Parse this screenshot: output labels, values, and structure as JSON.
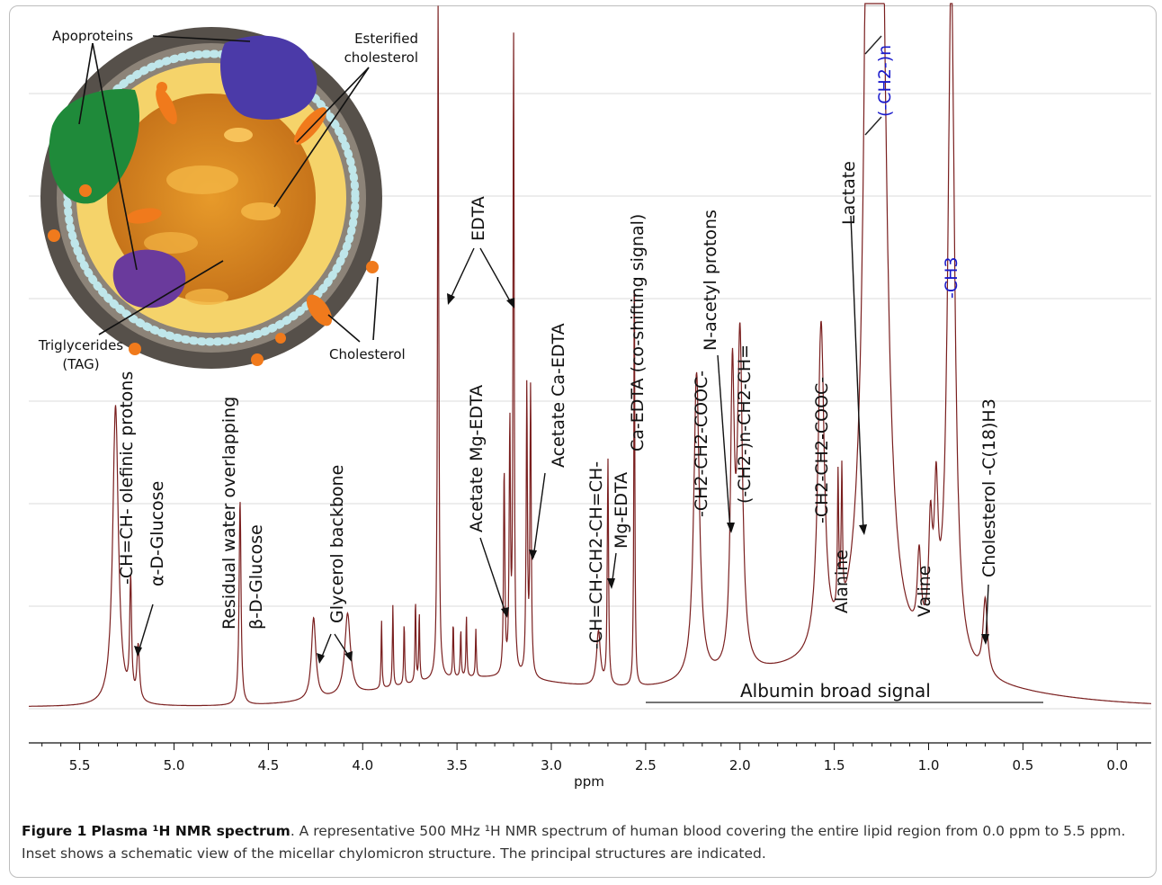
{
  "chart_data": {
    "type": "line",
    "title": "",
    "xlabel": "ppm",
    "ylabel": "",
    "xlim": [
      5.77,
      -0.18
    ],
    "x_reversed": true,
    "ylim": [
      0,
      1
    ],
    "grid": "horizontal",
    "line_color": "#7a1f1f",
    "tick_labels": [
      "5.5",
      "5.0",
      "4.5",
      "4.0",
      "3.5",
      "3.0",
      "2.5",
      "2.0",
      "1.5",
      "1.0",
      "0.5",
      "0.0"
    ],
    "tick_values": [
      5.5,
      5.0,
      4.5,
      4.0,
      3.5,
      3.0,
      2.5,
      2.0,
      1.5,
      1.0,
      0.5,
      0.0
    ],
    "peaks": [
      {
        "ppm": 5.31,
        "h": 0.44,
        "w": 0.018
      },
      {
        "ppm": 5.23,
        "h": 0.17,
        "w": 0.006
      },
      {
        "ppm": 5.19,
        "h": 0.08,
        "w": 0.008
      },
      {
        "ppm": 4.65,
        "h": 0.3,
        "w": 0.006
      },
      {
        "ppm": 4.26,
        "h": 0.12,
        "w": 0.014
      },
      {
        "ppm": 4.08,
        "h": 0.12,
        "w": 0.018
      },
      {
        "ppm": 3.9,
        "h": 0.1,
        "w": 0.003
      },
      {
        "ppm": 3.84,
        "h": 0.12,
        "w": 0.003
      },
      {
        "ppm": 3.78,
        "h": 0.09,
        "w": 0.003
      },
      {
        "ppm": 3.72,
        "h": 0.12,
        "w": 0.003
      },
      {
        "ppm": 3.7,
        "h": 0.1,
        "w": 0.003
      },
      {
        "ppm": 3.6,
        "h": 0.99,
        "w": 0.004
      },
      {
        "ppm": 3.52,
        "h": 0.08,
        "w": 0.003
      },
      {
        "ppm": 3.48,
        "h": 0.07,
        "w": 0.003
      },
      {
        "ppm": 3.45,
        "h": 0.09,
        "w": 0.003
      },
      {
        "ppm": 3.4,
        "h": 0.07,
        "w": 0.003
      },
      {
        "ppm": 3.25,
        "h": 0.3,
        "w": 0.004
      },
      {
        "ppm": 3.22,
        "h": 0.36,
        "w": 0.004
      },
      {
        "ppm": 3.2,
        "h": 0.94,
        "w": 0.0035
      },
      {
        "ppm": 3.13,
        "h": 0.42,
        "w": 0.004
      },
      {
        "ppm": 3.11,
        "h": 0.42,
        "w": 0.004
      },
      {
        "ppm": 2.75,
        "h": 0.08,
        "w": 0.012
      },
      {
        "ppm": 2.7,
        "h": 0.33,
        "w": 0.004
      },
      {
        "ppm": 2.56,
        "h": 0.64,
        "w": 0.003
      },
      {
        "ppm": 2.23,
        "h": 0.45,
        "w": 0.018
      },
      {
        "ppm": 2.04,
        "h": 0.41,
        "w": 0.012
      },
      {
        "ppm": 2.0,
        "h": 0.48,
        "w": 0.016
      },
      {
        "ppm": 1.57,
        "h": 0.48,
        "w": 0.02
      },
      {
        "ppm": 1.48,
        "h": 0.2,
        "w": 0.004
      },
      {
        "ppm": 1.46,
        "h": 0.2,
        "w": 0.004
      },
      {
        "ppm": 1.3,
        "h": 3.5,
        "w": 0.022
      },
      {
        "ppm": 1.25,
        "h": 0.75,
        "w": 0.035
      },
      {
        "ppm": 1.05,
        "h": 0.12,
        "w": 0.012
      },
      {
        "ppm": 0.99,
        "h": 0.16,
        "w": 0.012
      },
      {
        "ppm": 0.96,
        "h": 0.2,
        "w": 0.012
      },
      {
        "ppm": 0.88,
        "h": 1.02,
        "w": 0.022
      },
      {
        "ppm": 0.7,
        "h": 0.11,
        "w": 0.014
      }
    ],
    "annotations": {
      "olefinic": "-CH=CH- olefinic protons",
      "a_glucose": "α-D-Glucose",
      "residual_water": "Residual water overlapping",
      "b_glucose": "β-D-Glucose",
      "glycerol": "Glycerol backbone",
      "edta": "EDTA",
      "acetate_mg": "Acetate Mg-EDTA",
      "acetate_ca": "Acetate Ca-EDTA",
      "ch_eq": "-CH=CH-CH2-CH=CH-",
      "mg_edta": "Mg-EDTA",
      "ca_edta": "Ca-EDTA (co-shifting signal)",
      "ch2_ch2_cooc": "-CH2-CH2-COOC-",
      "n_acetyl": "N-acetyl protons",
      "ch2n_ch2_ch": "(-CH2-)n-CH2-CH=",
      "ch2_ch2_cooc2": "-CH2-CH2-COOC-",
      "alanine": "Alanine",
      "lactate": "Lactate",
      "ch2n": "(-CH2-)n",
      "valine": "Valine",
      "ch3": "-CH3",
      "cholesterol_c18": "Cholesterol -C(18)H3",
      "albumin": "Albumin  broad  signal"
    }
  },
  "inset": {
    "apoproteins": "Apoproteins",
    "esterified_line1": "Esterified",
    "esterified_line2": "cholesterol",
    "triglycerides_line1": "Triglycerides",
    "triglycerides_line2": "(TAG)",
    "cholesterol": "Cholesterol",
    "colors": {
      "shell": "#5a5550",
      "phospholipid": "#f5d36a",
      "core": "#d98a1e",
      "headgroup": "#bfe6ea",
      "apo_purple": "#4b3aa8",
      "apo_green": "#1f8a3a",
      "apo_violet": "#6a3a9c",
      "cholesterol": "#f07a1c"
    }
  },
  "caption": {
    "label": "Figure 1",
    "title": "Plasma ¹H NMR spectrum",
    "text": ". A representative 500 MHz ¹H NMR spectrum of human blood covering the entire lipid region from 0.0 ppm to 5.5 ppm. Inset shows a schematic view of the micellar chylomicron structure. The principal structures are indicated."
  }
}
